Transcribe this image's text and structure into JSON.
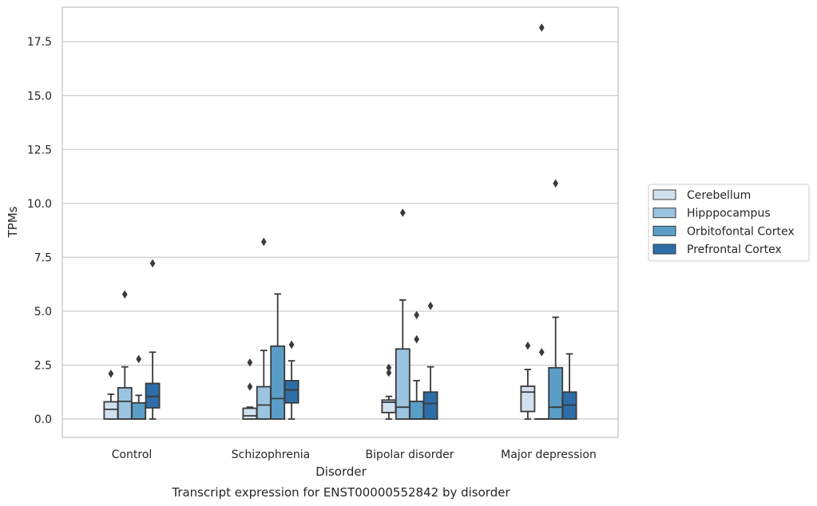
{
  "chart_data": {
    "type": "box",
    "title": "Transcript expression for ENST00000552842 by disorder",
    "xlabel": "Disorder",
    "ylabel": "TPMs",
    "ylim": [
      -0.85,
      19.1
    ],
    "yticks": [
      "0.0",
      "2.5",
      "5.0",
      "7.5",
      "10.0",
      "12.5",
      "15.0",
      "17.5"
    ],
    "grid": "horizontal",
    "legend_placement": "right",
    "categories": [
      "Control",
      "Schizophrenia",
      "Bipolar disorder",
      "Major depression"
    ],
    "series": [
      {
        "name": "Cerebellum",
        "color": "#d1e1f0",
        "boxes": [
          {
            "whislo": 0.0,
            "q1": 0.0,
            "med": 0.45,
            "q3": 0.8,
            "whishi": 1.15,
            "fliers": [
              2.1
            ]
          },
          {
            "whislo": 0.0,
            "q1": 0.0,
            "med": 0.15,
            "q3": 0.5,
            "whishi": 0.55,
            "fliers": [
              1.5,
              2.62
            ]
          },
          {
            "whislo": 0.0,
            "q1": 0.3,
            "med": 0.78,
            "q3": 0.88,
            "whishi": 1.05,
            "fliers": [
              2.15,
              2.38
            ]
          },
          {
            "whislo": 0.0,
            "q1": 0.35,
            "med": 1.25,
            "q3": 1.52,
            "whishi": 2.3,
            "fliers": [
              3.4
            ]
          }
        ]
      },
      {
        "name": "Hipppocampus",
        "color": "#9ac4e0",
        "boxes": [
          {
            "whislo": 0.0,
            "q1": 0.0,
            "med": 0.82,
            "q3": 1.45,
            "whishi": 2.42,
            "fliers": [
              5.78
            ]
          },
          {
            "whislo": 0.0,
            "q1": 0.0,
            "med": 0.65,
            "q3": 1.5,
            "whishi": 3.18,
            "fliers": [
              8.22
            ]
          },
          {
            "whislo": 0.0,
            "q1": 0.0,
            "med": 0.55,
            "q3": 3.25,
            "whishi": 5.52,
            "fliers": [
              9.57
            ]
          },
          {
            "whislo": 0.0,
            "q1": 0.0,
            "med": 0.0,
            "q3": 0.0,
            "whishi": 0.0,
            "fliers": [
              3.1,
              18.15
            ]
          }
        ]
      },
      {
        "name": "Orbitofontal Cortex",
        "color": "#5a9ec8",
        "boxes": [
          {
            "whislo": 0.0,
            "q1": 0.0,
            "med": 0.0,
            "q3": 0.75,
            "whishi": 1.1,
            "fliers": [
              2.78
            ]
          },
          {
            "whislo": 0.0,
            "q1": 0.0,
            "med": 0.95,
            "q3": 3.38,
            "whishi": 5.8,
            "fliers": []
          },
          {
            "whislo": 0.0,
            "q1": 0.0,
            "med": 0.0,
            "q3": 0.82,
            "whishi": 1.78,
            "fliers": [
              3.7,
              4.82
            ]
          },
          {
            "whislo": 0.0,
            "q1": 0.0,
            "med": 0.55,
            "q3": 2.38,
            "whishi": 4.72,
            "fliers": [
              10.93
            ]
          }
        ]
      },
      {
        "name": "Prefrontal Cortex",
        "color": "#2e6ea8",
        "boxes": [
          {
            "whislo": 0.0,
            "q1": 0.52,
            "med": 1.05,
            "q3": 1.65,
            "whishi": 3.1,
            "fliers": [
              7.22
            ]
          },
          {
            "whislo": 0.0,
            "q1": 0.75,
            "med": 1.35,
            "q3": 1.78,
            "whishi": 2.7,
            "fliers": [
              3.45
            ]
          },
          {
            "whislo": 0.0,
            "q1": 0.0,
            "med": 0.72,
            "q3": 1.25,
            "whishi": 2.42,
            "fliers": [
              5.25
            ]
          },
          {
            "whislo": 0.0,
            "q1": 0.0,
            "med": 0.65,
            "q3": 1.25,
            "whishi": 3.02,
            "fliers": []
          }
        ]
      }
    ]
  }
}
